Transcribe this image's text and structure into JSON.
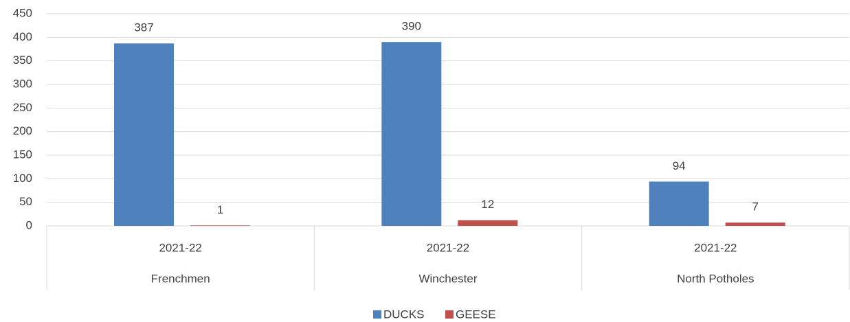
{
  "chart_data": {
    "type": "bar",
    "categories": [
      "2021-22",
      "2021-22",
      "2021-22"
    ],
    "groups": [
      "Frenchmen",
      "Winchester",
      "North Potholes"
    ],
    "series": [
      {
        "name": "DUCKS",
        "color": "#4f81bd",
        "values": [
          387,
          390,
          94
        ]
      },
      {
        "name": "GEESE",
        "color": "#c0504d",
        "values": [
          1,
          12,
          7
        ]
      }
    ],
    "ylim": [
      0,
      450
    ],
    "yticks": [
      0,
      50,
      100,
      150,
      200,
      250,
      300,
      350,
      400,
      450
    ],
    "grid": true,
    "legend": "bottom"
  }
}
